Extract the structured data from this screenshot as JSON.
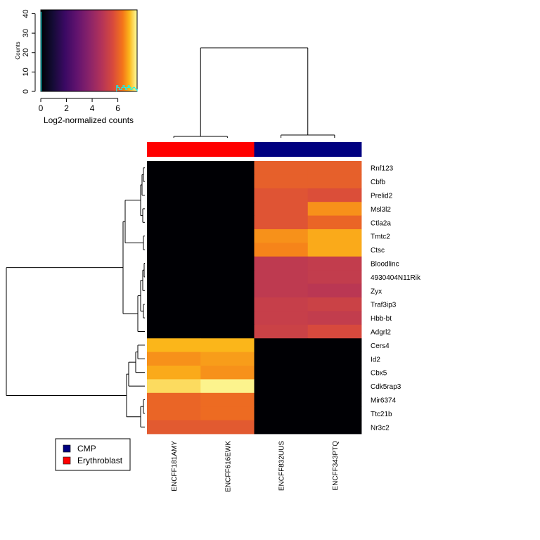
{
  "chart_data": {
    "type": "heatmap",
    "columns": [
      "ENCFF181AMY",
      "ENCFF616EWK",
      "ENCFF832UUS",
      "ENCFF343PTQ"
    ],
    "rows": [
      "Rnf123",
      "Cbfb",
      "Prelid2",
      "Msl3l2",
      "Ctla2a",
      "Tmtc2",
      "Ctsc",
      "Bloodlinc",
      "4930404N11Rik",
      "Zyx",
      "Traf3ip3",
      "Hbb-bt",
      "Adgrl2",
      "Cers4",
      "Id2",
      "Cbx5",
      "Cdk5rap3",
      "Mir6374",
      "Ttc21b",
      "Nr3c2"
    ],
    "values": [
      [
        0.0,
        0.0,
        6.0,
        6.0
      ],
      [
        0.0,
        0.0,
        6.0,
        6.0
      ],
      [
        0.0,
        0.0,
        5.8,
        5.7
      ],
      [
        0.0,
        0.0,
        5.8,
        6.6
      ],
      [
        0.0,
        0.0,
        5.8,
        6.1
      ],
      [
        0.0,
        0.0,
        6.6,
        6.8
      ],
      [
        0.0,
        0.0,
        6.5,
        6.8
      ],
      [
        0.0,
        0.0,
        5.0,
        5.1
      ],
      [
        0.0,
        0.0,
        5.0,
        5.1
      ],
      [
        0.0,
        0.0,
        5.0,
        4.9
      ],
      [
        0.0,
        0.0,
        5.2,
        5.3
      ],
      [
        0.0,
        0.0,
        5.2,
        5.1
      ],
      [
        0.0,
        0.0,
        5.3,
        5.6
      ],
      [
        6.9,
        6.9,
        0.0,
        0.0
      ],
      [
        6.6,
        6.7,
        0.0,
        0.0
      ],
      [
        6.8,
        6.6,
        0.0,
        0.0
      ],
      [
        7.2,
        7.4,
        0.0,
        0.0
      ],
      [
        6.1,
        6.2,
        0.0,
        0.0
      ],
      [
        6.1,
        6.2,
        0.0,
        0.0
      ],
      [
        5.9,
        5.9,
        0.0,
        0.0
      ]
    ],
    "column_groups": [
      "Erythroblast",
      "Erythroblast",
      "CMP",
      "CMP"
    ],
    "group_colors": {
      "CMP": "#000080",
      "Erythroblast": "#ff0000"
    },
    "legend": {
      "entries": [
        "CMP",
        "Erythroblast"
      ],
      "placement": "bottom-left"
    },
    "color_key": {
      "xlabel": "Log2-normalized counts",
      "ylabel": "Counts",
      "xticks": [
        "0",
        "2",
        "4",
        "6"
      ],
      "yticks": [
        "0",
        "10",
        "20",
        "30",
        "40"
      ],
      "xlim": [
        0,
        7.5
      ],
      "ylim": [
        0,
        42
      ],
      "colormap": "inferno",
      "histogram_color": "#00ffff",
      "density_color": "#00ffff"
    },
    "dendrograms": {
      "rows": true,
      "columns": true
    }
  }
}
